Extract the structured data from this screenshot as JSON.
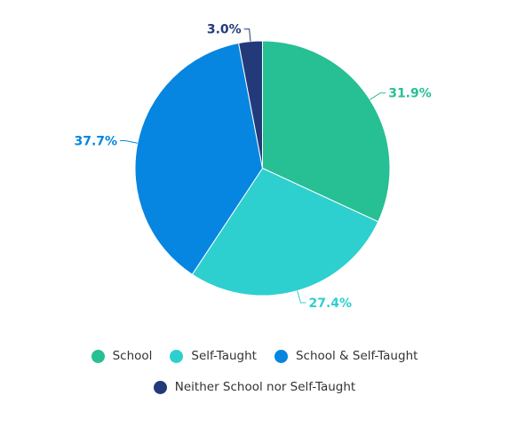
{
  "chart_data": {
    "type": "pie",
    "title": "",
    "slices": [
      {
        "label": "School",
        "value": 31.9,
        "display": "31.9%",
        "color": "#27bf94"
      },
      {
        "label": "Self-Taught",
        "value": 27.4,
        "display": "27.4%",
        "color": "#2ecfcf"
      },
      {
        "label": "School & Self-Taught",
        "value": 37.7,
        "display": "37.7%",
        "color": "#0686e0"
      },
      {
        "label": "Neither School nor Self-Taught",
        "value": 3.0,
        "display": "3.0%",
        "color": "#233a7a"
      }
    ],
    "legend_position": "bottom"
  }
}
